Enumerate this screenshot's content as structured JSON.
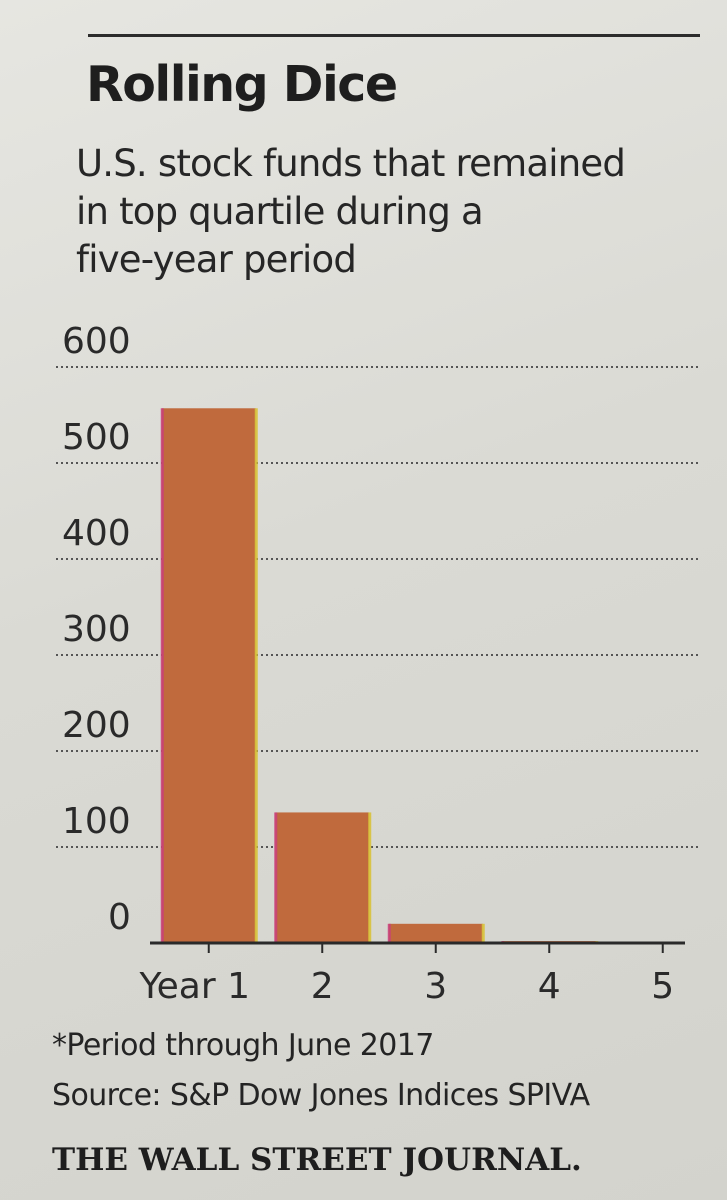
{
  "headline": "Rolling Dice",
  "subheadline": "U.S. stock funds that remained\nin top quartile during a\nfive-year period",
  "footnote": "*Period through June 2017",
  "source": "Source: S&P Dow Jones Indices SPIVA",
  "publisher": "THE WALL STREET JOURNAL.",
  "colors": {
    "bar": "#c06a3d",
    "bar_edge_left": "#c9407a",
    "bar_edge_right": "#d8c23a",
    "grid": "#555555",
    "axis": "#2a2a2a"
  },
  "chart_data": {
    "type": "bar",
    "title": "Rolling Dice",
    "subtitle": "U.S. stock funds that remained in top quartile during a five-year period",
    "categories": [
      "Year 1",
      "2",
      "3",
      "4",
      "5"
    ],
    "values": [
      557,
      136,
      20,
      2,
      0
    ],
    "ylim": [
      0,
      600
    ],
    "yticks": [
      0,
      100,
      200,
      300,
      400,
      500,
      600
    ],
    "grid": true,
    "grid_style": "dotted"
  }
}
